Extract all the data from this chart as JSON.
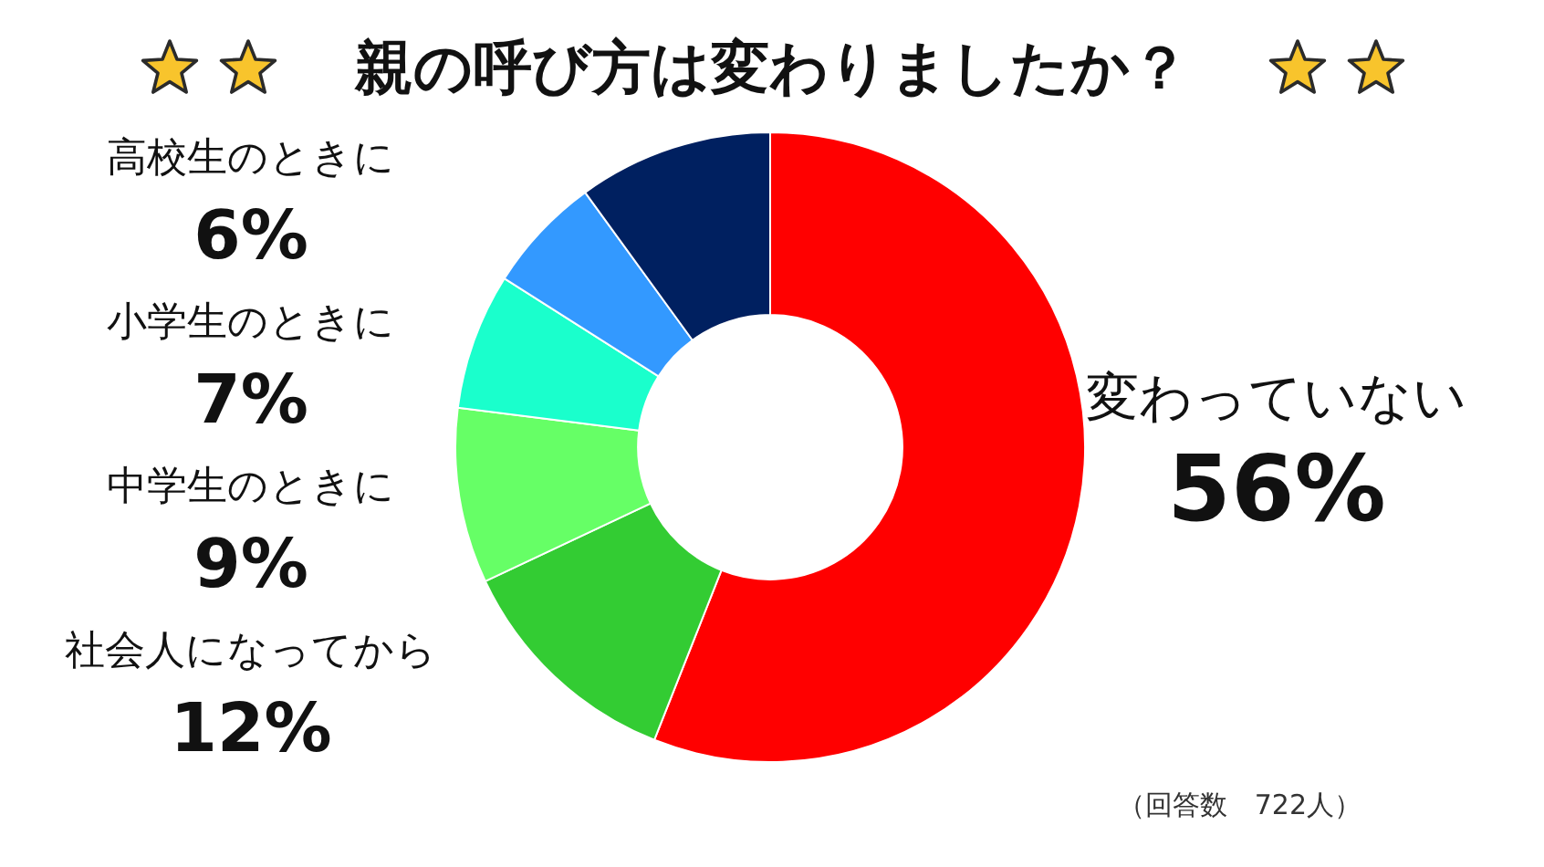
{
  "chart_data": {
    "type": "donut",
    "title": "親の呼び方は変わりましたか？",
    "categories": [
      "変わっていない",
      "社会人になってから",
      "中学生のときに",
      "小学生のときに",
      "高校生のときに",
      null
    ],
    "values": [
      56,
      12,
      9,
      7,
      6,
      10
    ],
    "colors": [
      "#ff0000",
      "#33cc33",
      "#66ff66",
      "#1affcc",
      "#3399ff",
      "#002060"
    ],
    "value_labels": [
      "56%",
      "12%",
      "9%",
      "7%",
      "6%",
      null
    ],
    "annotations": [
      "（回答数　722人）"
    ],
    "legend": false
  }
}
